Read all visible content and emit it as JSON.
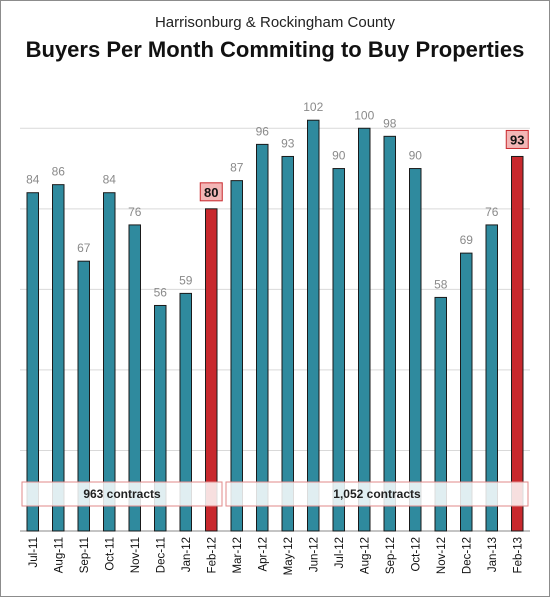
{
  "chart_data": {
    "type": "bar",
    "subtitle": "Harrisonburg & Rockingham County",
    "title": "Buyers Per Month Commiting to Buy Properties",
    "categories": [
      "Jul-11",
      "Aug-11",
      "Sep-11",
      "Oct-11",
      "Nov-11",
      "Dec-11",
      "Jan-12",
      "Feb-12",
      "Mar-12",
      "Apr-12",
      "May-12",
      "Jun-12",
      "Jul-12",
      "Aug-12",
      "Sep-12",
      "Oct-12",
      "Nov-12",
      "Dec-12",
      "Jan-13",
      "Feb-13"
    ],
    "values": [
      84,
      86,
      67,
      84,
      76,
      56,
      59,
      80,
      87,
      96,
      93,
      102,
      90,
      100,
      98,
      90,
      58,
      69,
      76,
      93
    ],
    "highlighted": [
      "Feb-12",
      "Feb-13"
    ],
    "ylim": [
      0,
      110
    ],
    "grid": true,
    "colors": {
      "bar": "#2f8a9e",
      "highlight": "#c8282d",
      "label_box": "#f3b6b6",
      "label_box_border": "#c8282d",
      "grid": "#d9d9d9"
    },
    "annotations": [
      {
        "text": "963 contracts",
        "from": "Jul-11",
        "to": "Feb-12"
      },
      {
        "text": "1,052 contracts",
        "from": "Mar-12",
        "to": "Feb-13"
      }
    ]
  }
}
